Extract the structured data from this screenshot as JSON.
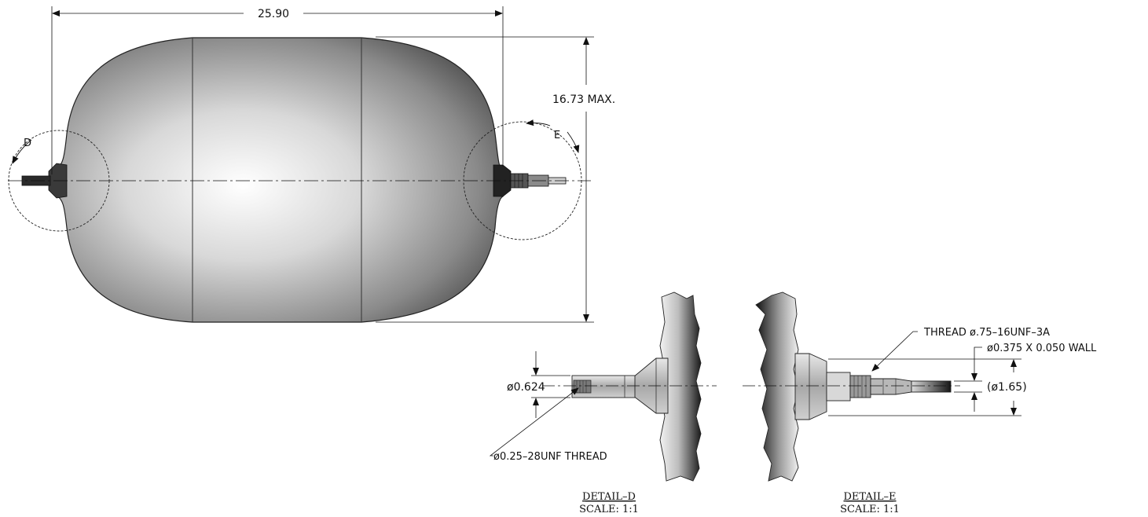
{
  "main_view": {
    "overall_length": "25.90",
    "overall_height": "16.73 MAX.",
    "detail_marker_d": "D",
    "detail_marker_e": "E"
  },
  "detail_d": {
    "diameter_callout": "ø0.624",
    "thread_callout": "ø0.25–28UNF THREAD",
    "title": "DETAIL–D",
    "scale": "SCALE: 1:1"
  },
  "detail_e": {
    "thread_callout": "THREAD ø.75–16UNF–3A",
    "tube_callout": "ø0.375 X 0.050 WALL",
    "reference_dia": "(ø1.65)",
    "title": "DETAIL–E",
    "scale": "SCALE: 1:1"
  }
}
